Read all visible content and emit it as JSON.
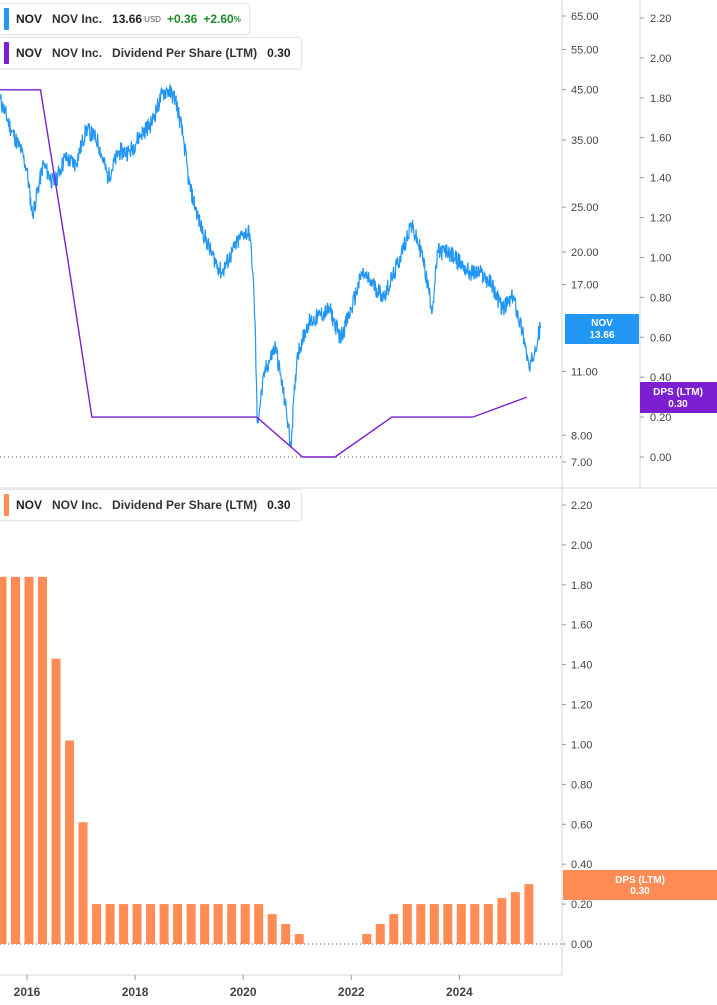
{
  "legend_top_price": {
    "ticker": "NOV",
    "company": "NOV Inc.",
    "price": "13.66",
    "currency": "USD",
    "change": "+0.36",
    "change_pct": "+2.60",
    "pct_sign": "%",
    "color": "#2196f3"
  },
  "legend_top_dps": {
    "ticker": "NOV",
    "company": "NOV Inc.",
    "metric": "Dividend Per Share (LTM)",
    "value": "0.30",
    "color": "#7b1fd1"
  },
  "legend_bottom_dps": {
    "ticker": "NOV",
    "company": "NOV Inc.",
    "metric": "Dividend Per Share (LTM)",
    "value": "0.30",
    "color": "#ff8c55"
  },
  "badges": {
    "price_ticker": "NOV",
    "price_value": "13.66",
    "dps_top_label": "DPS (LTM)",
    "dps_top_value": "0.30",
    "dps_bottom_label": "DPS (LTM)",
    "dps_bottom_value": "0.30"
  },
  "chart_data": [
    {
      "type": "line",
      "title": "",
      "series": [
        {
          "name": "NOV",
          "axis": "price (log)",
          "color": "#2196f3",
          "x": [
            2015.5,
            2015.7,
            2015.9,
            2016.0,
            2016.1,
            2016.3,
            2016.5,
            2016.7,
            2016.9,
            2017.1,
            2017.3,
            2017.5,
            2017.7,
            2017.9,
            2018.1,
            2018.3,
            2018.5,
            2018.6,
            2018.75,
            2018.9,
            2019.0,
            2019.2,
            2019.4,
            2019.6,
            2019.8,
            2020.0,
            2020.12,
            2020.18,
            2020.22,
            2020.26,
            2020.4,
            2020.6,
            2020.8,
            2020.88,
            2021.0,
            2021.2,
            2021.4,
            2021.6,
            2021.8,
            2022.0,
            2022.2,
            2022.4,
            2022.6,
            2022.8,
            2023.0,
            2023.1,
            2023.3,
            2023.5,
            2023.6,
            2023.8,
            2024.0,
            2024.2,
            2024.4,
            2024.6,
            2024.8,
            2025.0,
            2025.2,
            2025.3,
            2025.4,
            2025.5
          ],
          "values": [
            43,
            37,
            33,
            30,
            24,
            31,
            28,
            32,
            31,
            37,
            35,
            29,
            33,
            33,
            36,
            38,
            44,
            45,
            43,
            35,
            28,
            23,
            20,
            18,
            20,
            22,
            22,
            18,
            14,
            8.5,
            11,
            12.5,
            9,
            7.6,
            12,
            14,
            14.5,
            15,
            13,
            15,
            18,
            17,
            16,
            18,
            21,
            23,
            20,
            15,
            20,
            20,
            19,
            18,
            18,
            17,
            15,
            16,
            13,
            11,
            12.5,
            13.66
          ]
        },
        {
          "name": "DPS (LTM)",
          "axis": "dividend",
          "color": "#7b1fd1",
          "x": [
            2015.5,
            2016.25,
            2016.75,
            2017.2,
            2020.25,
            2021.1,
            2021.7,
            2022.75,
            2024.25,
            2025.25
          ],
          "values": [
            1.84,
            1.84,
            1.0,
            0.2,
            0.2,
            0.0,
            0.0,
            0.2,
            0.2,
            0.3
          ]
        }
      ],
      "price_ticks": [
        7.0,
        8.0,
        11.0,
        17.0,
        20.0,
        25.0,
        35.0,
        45.0,
        55.0,
        65.0
      ],
      "dividend_ticks": [
        0.0,
        0.2,
        0.4,
        0.6,
        0.8,
        1.0,
        1.2,
        1.4,
        1.6,
        1.8,
        2.0,
        2.2
      ],
      "price_scale": "log",
      "grid": false
    },
    {
      "type": "bar",
      "title": "",
      "series": [
        {
          "name": "Dividend Per Share (LTM)",
          "color": "#ff8c55",
          "x": [
            2015.5,
            2015.75,
            2016.0,
            2016.25,
            2016.5,
            2016.75,
            2017.0,
            2017.25,
            2017.5,
            2017.75,
            2018.0,
            2018.25,
            2018.5,
            2018.75,
            2019.0,
            2019.25,
            2019.5,
            2019.75,
            2020.0,
            2020.25,
            2020.5,
            2020.75,
            2021.0,
            2021.25,
            2021.5,
            2021.75,
            2022.0,
            2022.25,
            2022.5,
            2022.75,
            2023.0,
            2023.25,
            2023.5,
            2023.75,
            2024.0,
            2024.25,
            2024.5,
            2024.75,
            2025.0,
            2025.25
          ],
          "values": [
            1.84,
            1.84,
            1.84,
            1.84,
            1.43,
            1.02,
            0.61,
            0.2,
            0.2,
            0.2,
            0.2,
            0.2,
            0.2,
            0.2,
            0.2,
            0.2,
            0.2,
            0.2,
            0.2,
            0.2,
            0.15,
            0.1,
            0.05,
            0.0,
            0.0,
            0.0,
            0.0,
            0.05,
            0.1,
            0.15,
            0.2,
            0.2,
            0.2,
            0.2,
            0.2,
            0.2,
            0.2,
            0.23,
            0.26,
            0.3
          ]
        }
      ],
      "y_ticks": [
        0.0,
        0.2,
        0.4,
        0.6,
        0.8,
        1.0,
        1.2,
        1.4,
        1.6,
        1.8,
        2.0,
        2.2
      ],
      "x_ticks": [
        "2016",
        "2018",
        "2020",
        "2022",
        "2024"
      ],
      "x_tick_values": [
        2016,
        2018,
        2020,
        2022,
        2024
      ],
      "grid": false
    }
  ]
}
